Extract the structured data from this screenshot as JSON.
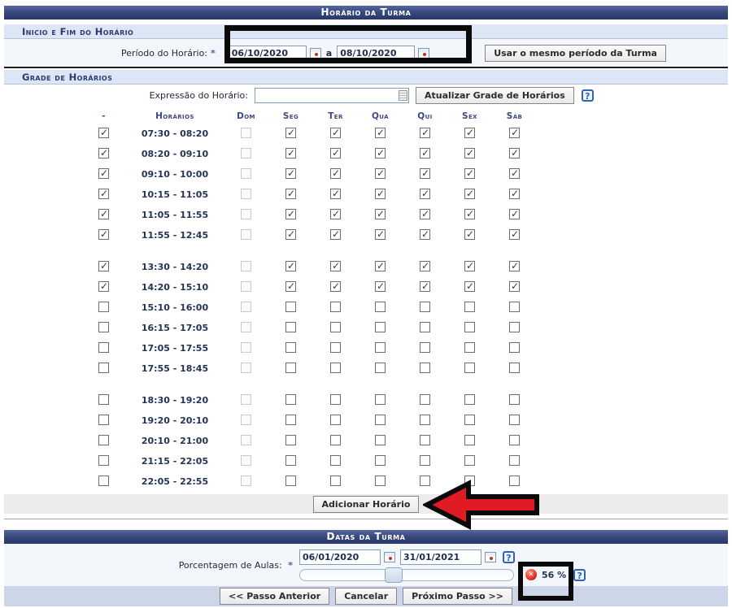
{
  "header": {
    "title": "Horário da Turma"
  },
  "inicio_fim": {
    "title": "Inicio e Fim do Horário",
    "period_label": "Período do Horário:",
    "required_marker": "*",
    "date_start": "06/10/2020",
    "date_separator": "a",
    "date_end": "08/10/2020",
    "use_same_period_button": "Usar o mesmo período da Turma"
  },
  "grade": {
    "title": "Grade de Horários",
    "expression_label": "Expressão do Horário:",
    "expression_value": "",
    "update_button": "Atualizar Grade de Horários",
    "columns": [
      "-",
      "Horários",
      "Dom",
      "Seg",
      "Ter",
      "Qua",
      "Qui",
      "Sex",
      "Sáb"
    ],
    "rows": [
      {
        "time": "07:30 - 08:20",
        "checked": true,
        "gap_before": false
      },
      {
        "time": "08:20 - 09:10",
        "checked": true,
        "gap_before": false
      },
      {
        "time": "09:10 - 10:00",
        "checked": true,
        "gap_before": false
      },
      {
        "time": "10:15 - 11:05",
        "checked": true,
        "gap_before": false
      },
      {
        "time": "11:05 - 11:55",
        "checked": true,
        "gap_before": false
      },
      {
        "time": "11:55 - 12:45",
        "checked": true,
        "gap_before": false
      },
      {
        "time": "13:30 - 14:20",
        "checked": true,
        "gap_before": true
      },
      {
        "time": "14:20 - 15:10",
        "checked": true,
        "gap_before": false
      },
      {
        "time": "15:10 - 16:00",
        "checked": false,
        "gap_before": false
      },
      {
        "time": "16:15 - 17:05",
        "checked": false,
        "gap_before": false
      },
      {
        "time": "17:05 - 17:55",
        "checked": false,
        "gap_before": false
      },
      {
        "time": "17:55 - 18:45",
        "checked": false,
        "gap_before": false
      },
      {
        "time": "18:30 - 19:20",
        "checked": false,
        "gap_before": true
      },
      {
        "time": "19:20 - 20:10",
        "checked": false,
        "gap_before": false
      },
      {
        "time": "20:10 - 21:00",
        "checked": false,
        "gap_before": false
      },
      {
        "time": "21:15 - 22:05",
        "checked": false,
        "gap_before": false
      },
      {
        "time": "22:05 - 22:55",
        "checked": false,
        "gap_before": false
      }
    ],
    "add_button": "Adicionar Horário"
  },
  "datas": {
    "title": "Datas da Turma",
    "percent_label": "Porcentagem de Aulas:",
    "required_marker": "*",
    "date_start": "06/01/2020",
    "date_end": "31/01/2021",
    "percent_value": "56 %",
    "handle_position_percent": 44
  },
  "footer": {
    "prev_button": "<< Passo Anterior",
    "cancel_button": "Cancelar",
    "next_button": "Próximo Passo >>"
  },
  "icons": {
    "help": "?",
    "error_x": "✕"
  },
  "colors": {
    "header_bar": "#3a4a80",
    "section_band": "#dce6f4",
    "body_light": "#f3f7fc",
    "footer_bar": "#cdd5e8",
    "help_blue": "#2f64b5",
    "error_red": "#c81e10",
    "arrow_red": "#e01b24",
    "annotation_black": "#0a0a0a"
  }
}
